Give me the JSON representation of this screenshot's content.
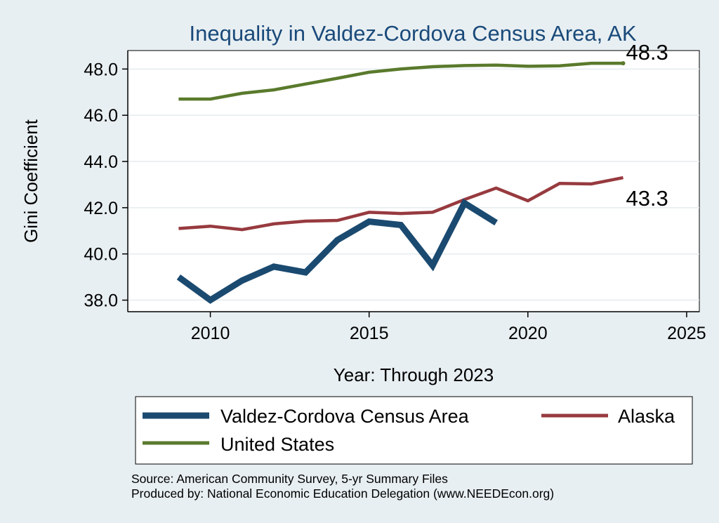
{
  "chart_data": {
    "type": "line",
    "title": "Inequality in Valdez-Cordova Census Area, AK",
    "xlabel": "Year: Through 2023",
    "ylabel": "Gini Coefficient",
    "xlim": [
      2007.4,
      2025.4
    ],
    "ylim": [
      37.5,
      48.8
    ],
    "xticks": [
      2010,
      2015,
      2020,
      2025
    ],
    "yticks": [
      38.0,
      40.0,
      42.0,
      44.0,
      46.0,
      48.0
    ],
    "ytick_labels": [
      "38.0",
      "40.0",
      "42.0",
      "44.0",
      "46.0",
      "48.0"
    ],
    "grid": true,
    "series": [
      {
        "name": "Valdez-Cordova Census Area",
        "color": "#1b4a70",
        "x": [
          2009,
          2010,
          2011,
          2012,
          2013,
          2014,
          2015,
          2016,
          2017,
          2018,
          2019
        ],
        "values": [
          39.0,
          38.0,
          38.85,
          39.45,
          39.2,
          40.6,
          41.4,
          41.25,
          39.5,
          42.2,
          41.35
        ]
      },
      {
        "name": "Alaska",
        "color": "#973a3f",
        "x": [
          2009,
          2010,
          2011,
          2012,
          2013,
          2014,
          2015,
          2016,
          2017,
          2018,
          2019,
          2020,
          2021,
          2022,
          2023
        ],
        "values": [
          41.1,
          41.2,
          41.05,
          41.3,
          41.42,
          41.45,
          41.8,
          41.75,
          41.8,
          42.35,
          42.85,
          42.3,
          43.05,
          43.03,
          43.3
        ]
      },
      {
        "name": "United States",
        "color": "#5a7a2c",
        "x": [
          2009,
          2010,
          2011,
          2012,
          2013,
          2014,
          2015,
          2016,
          2017,
          2018,
          2019,
          2020,
          2021,
          2022,
          2023
        ],
        "values": [
          46.7,
          46.7,
          46.95,
          47.1,
          47.35,
          47.6,
          47.86,
          48.0,
          48.1,
          48.15,
          48.17,
          48.12,
          48.14,
          48.25,
          48.25
        ]
      }
    ],
    "end_labels": [
      {
        "series": "United States",
        "text": "48.3"
      },
      {
        "series": "Alaska",
        "text": "43.3"
      }
    ],
    "legend": {
      "position": "bottom",
      "entries": [
        "Valdez-Cordova Census Area",
        "Alaska",
        "United States"
      ]
    }
  },
  "footer": {
    "source": "Source: American Community Survey, 5-yr Summary Files",
    "producer": "Produced by: National Economic Education Delegation (www.NEEDEcon.org)"
  }
}
